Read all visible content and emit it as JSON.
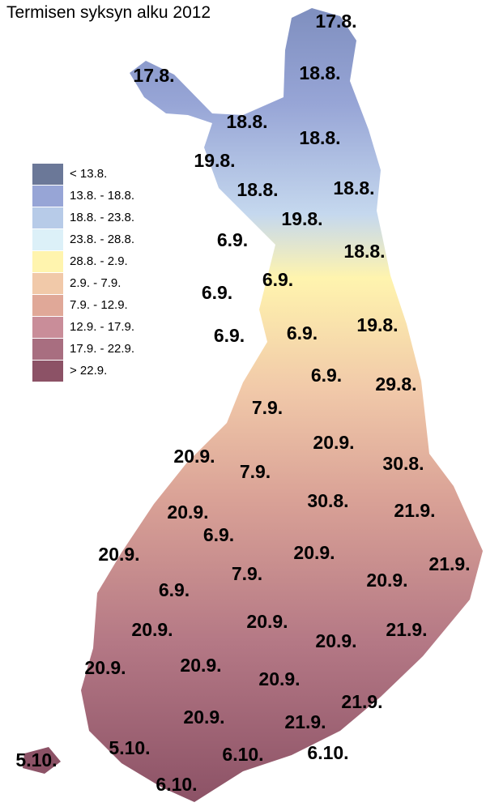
{
  "title": "Termisen syksyn alku 2012",
  "legend": [
    {
      "label": "< 13.8.",
      "color": "#6b7898"
    },
    {
      "label": "13.8. - 18.8.",
      "color": "#97a5d6"
    },
    {
      "label": "18.8. - 23.8.",
      "color": "#b7cbe8"
    },
    {
      "label": "23.8. - 28.8.",
      "color": "#dcf0f8"
    },
    {
      "label": "28.8. - 2.9.",
      "color": "#fff4ae"
    },
    {
      "label": "2.9. - 7.9.",
      "color": "#f1c9a9"
    },
    {
      "label": "7.9. - 12.9.",
      "color": "#e0a898"
    },
    {
      "label": "12.9. - 17.9.",
      "color": "#c98d99"
    },
    {
      "label": "17.9. - 22.9.",
      "color": "#a86e80"
    },
    {
      "label": "> 22.9.",
      "color": "#8c5266"
    }
  ],
  "labels": [
    "17.8.",
    "17.8.",
    "18.8.",
    "18.8.",
    "18.8.",
    "19.8.",
    "18.8.",
    "18.8.",
    "19.8.",
    "6.9.",
    "18.8.",
    "6.9.",
    "6.9.",
    "6.9.",
    "6.9.",
    "19.8.",
    "6.9.",
    "29.8.",
    "7.9.",
    "20.9.",
    "20.9.",
    "7.9.",
    "30.8.",
    "30.8.",
    "21.9.",
    "20.9.",
    "6.9.",
    "20.9.",
    "20.9.",
    "21.9.",
    "7.9.",
    "20.9.",
    "6.9.",
    "20.9.",
    "20.9.",
    "21.9.",
    "20.9.",
    "20.9.",
    "20.9.",
    "20.9.",
    "21.9.",
    "20.9.",
    "21.9.",
    "5.10.",
    "5.10.",
    "6.10.",
    "6.10.",
    "6.10."
  ]
}
